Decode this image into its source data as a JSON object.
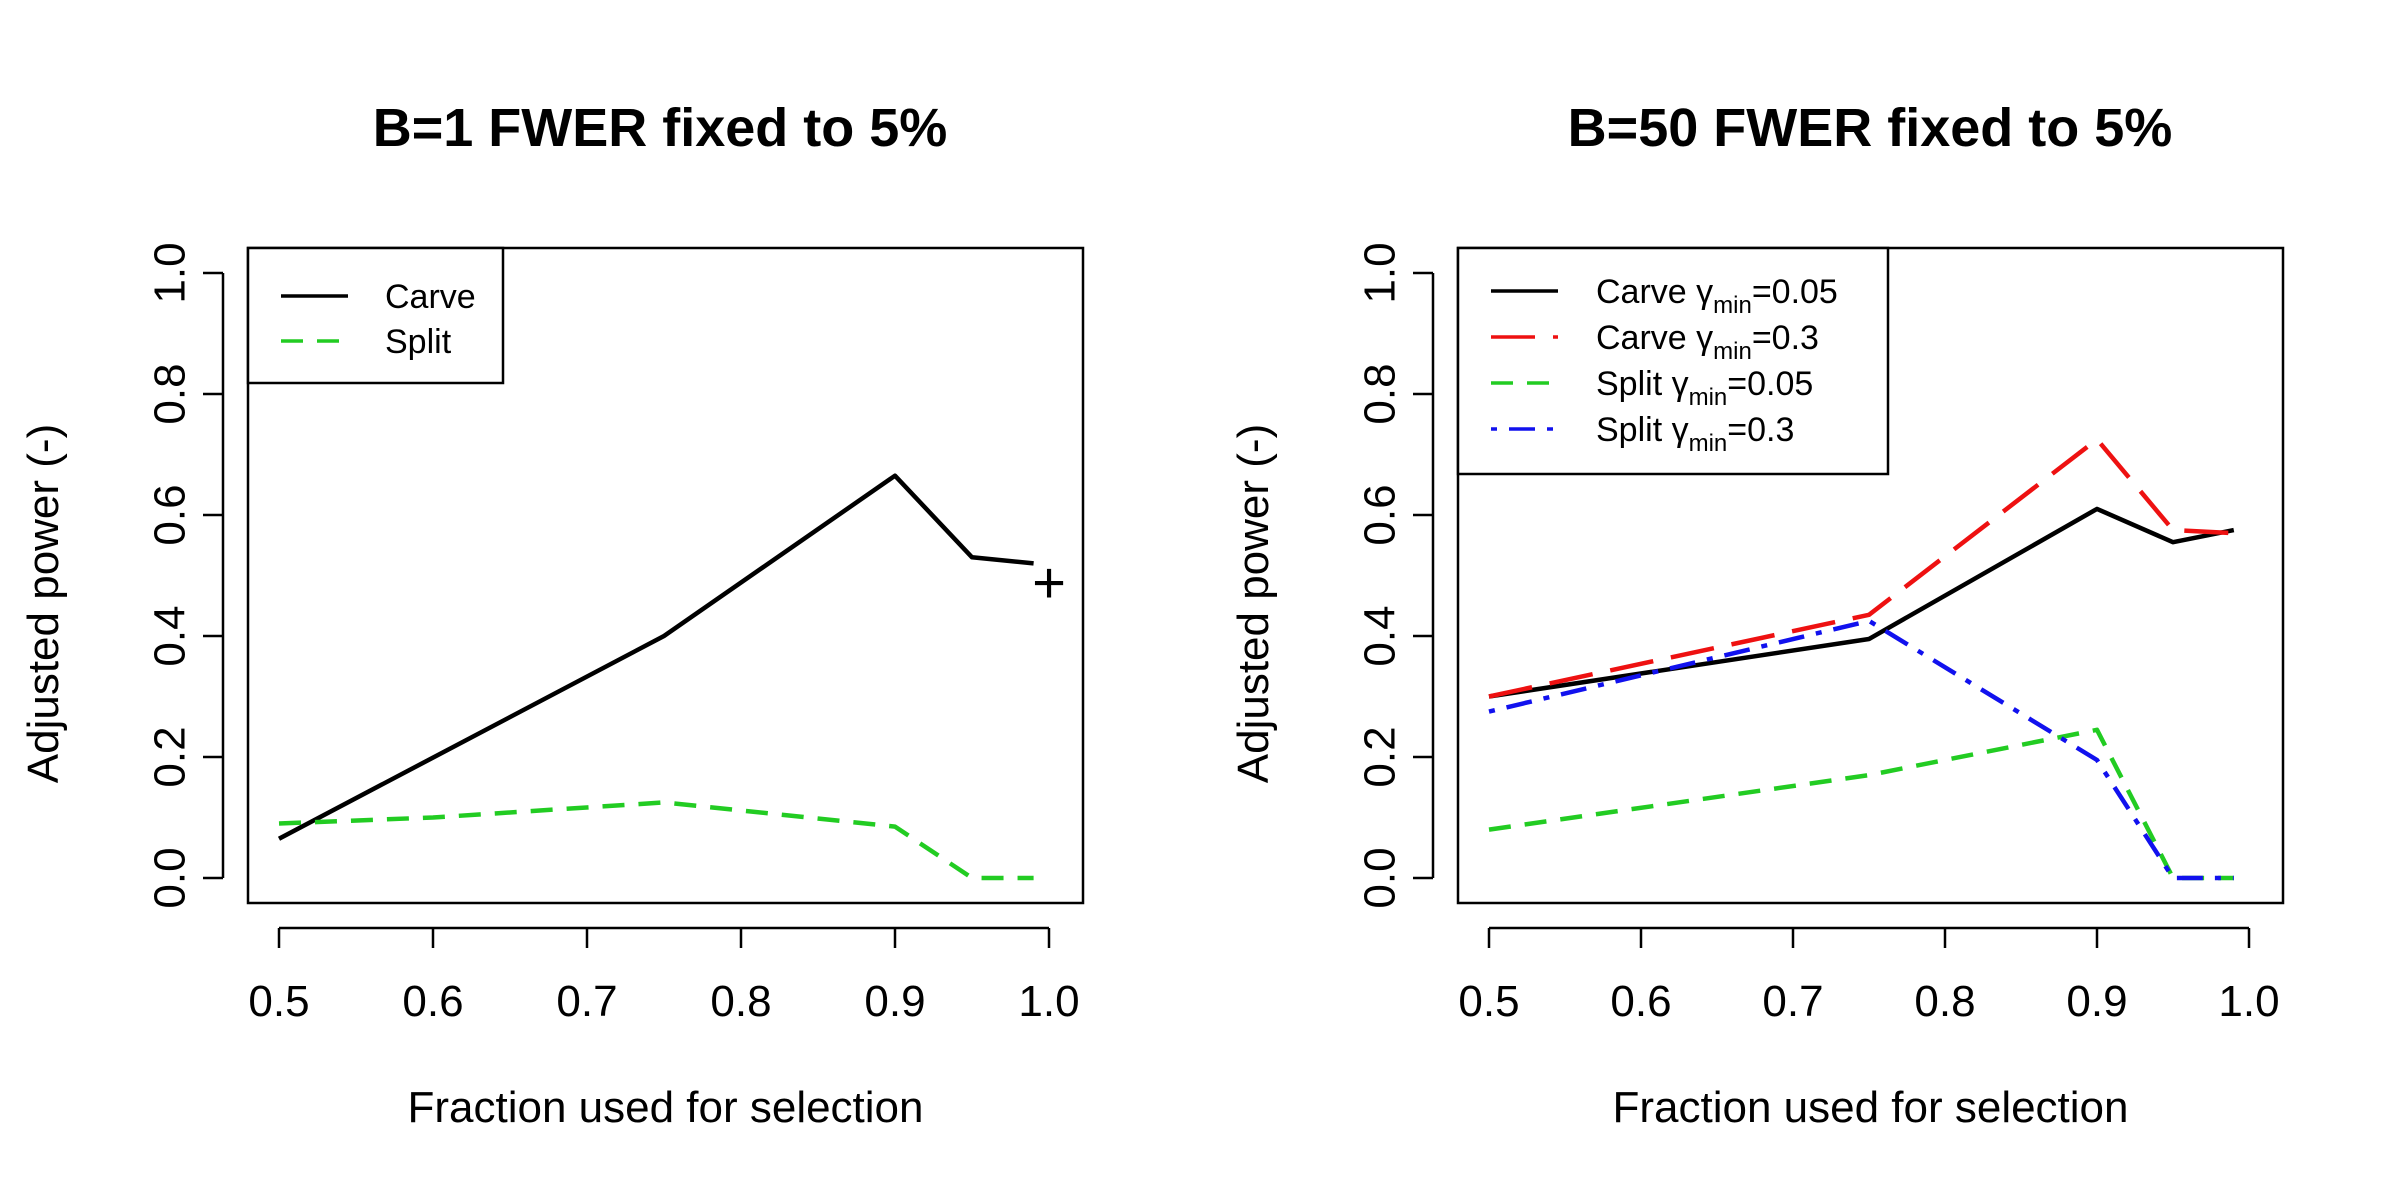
{
  "chart_data": [
    {
      "type": "line",
      "title": "B=1 FWER fixed to 5%",
      "xlabel": "Fraction used for selection",
      "ylabel": "Adjusted power (-)",
      "xlim": [
        0.5,
        1.0
      ],
      "ylim": [
        0.0,
        1.0
      ],
      "xticks": [
        "0.5",
        "0.6",
        "0.7",
        "0.8",
        "0.9",
        "1.0"
      ],
      "yticks": [
        "0.0",
        "0.2",
        "0.4",
        "0.6",
        "0.8",
        "1.0"
      ],
      "legend_position": "top-left",
      "grid": false,
      "series": [
        {
          "name": "Carve",
          "name_sub": "",
          "name_suffix": "",
          "color": "#000000",
          "dash": "solid",
          "x": [
            0.5,
            0.75,
            0.9,
            0.95,
            0.99
          ],
          "y": [
            0.065,
            0.4,
            0.665,
            0.53,
            0.52
          ]
        },
        {
          "name": "Split",
          "name_sub": "",
          "name_suffix": "",
          "color": "#22cc22",
          "dash": "dashed",
          "x": [
            0.5,
            0.6,
            0.75,
            0.9,
            0.95,
            0.99
          ],
          "y": [
            0.09,
            0.1,
            0.125,
            0.085,
            0.0,
            0.0
          ]
        }
      ],
      "marker": {
        "symbol": "+",
        "x": 1.0,
        "y": 0.485
      }
    },
    {
      "type": "line",
      "title": "B=50 FWER fixed to 5%",
      "xlabel": "Fraction used for selection",
      "ylabel": "Adjusted power (-)",
      "xlim": [
        0.5,
        1.0
      ],
      "ylim": [
        0.0,
        1.0
      ],
      "xticks": [
        "0.5",
        "0.6",
        "0.7",
        "0.8",
        "0.9",
        "1.0"
      ],
      "yticks": [
        "0.0",
        "0.2",
        "0.4",
        "0.6",
        "0.8",
        "1.0"
      ],
      "legend_position": "top-left",
      "grid": false,
      "series": [
        {
          "name": "Carve γ",
          "name_sub": "min",
          "name_suffix": "=0.05",
          "color": "#000000",
          "dash": "solid",
          "x": [
            0.5,
            0.75,
            0.9,
            0.95,
            0.99
          ],
          "y": [
            0.3,
            0.395,
            0.61,
            0.555,
            0.575
          ]
        },
        {
          "name": "Carve γ",
          "name_sub": "min",
          "name_suffix": "=0.3",
          "color": "#ee1111",
          "dash": "longdash",
          "x": [
            0.5,
            0.75,
            0.9,
            0.95,
            0.99
          ],
          "y": [
            0.3,
            0.435,
            0.725,
            0.575,
            0.57
          ]
        },
        {
          "name": "Split γ",
          "name_sub": "min",
          "name_suffix": "=0.05",
          "color": "#22cc22",
          "dash": "dashed",
          "x": [
            0.5,
            0.75,
            0.9,
            0.95,
            0.99
          ],
          "y": [
            0.08,
            0.17,
            0.245,
            0.0,
            0.0
          ]
        },
        {
          "name": "Split γ",
          "name_sub": "min",
          "name_suffix": "=0.3",
          "color": "#1111ee",
          "dash": "dotdash",
          "x": [
            0.5,
            0.75,
            0.9,
            0.95,
            0.99
          ],
          "y": [
            0.275,
            0.425,
            0.195,
            0.0,
            0.0
          ]
        }
      ]
    }
  ]
}
